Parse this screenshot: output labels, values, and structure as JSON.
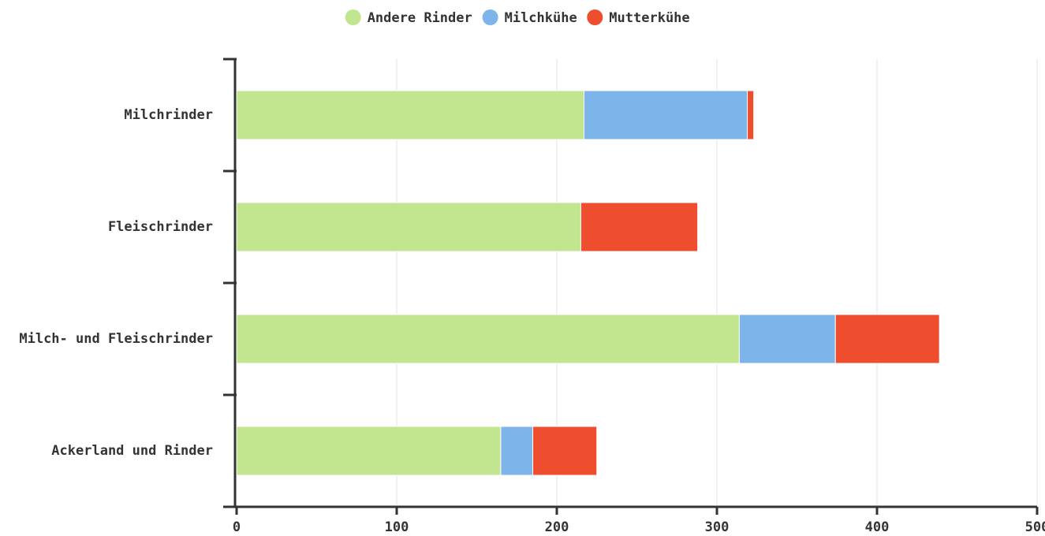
{
  "chart_data": {
    "type": "bar",
    "orientation": "horizontal",
    "stacked": true,
    "categories": [
      "Milchrinder",
      "Fleischrinder",
      "Milch- und Fleischrinder",
      "Ackerland und Rinder"
    ],
    "series": [
      {
        "name": "Andere Rinder",
        "color": "#c2e690",
        "values": [
          217,
          215,
          314,
          165
        ]
      },
      {
        "name": "Milchkühe",
        "color": "#7db4ea",
        "values": [
          102,
          0,
          60,
          20
        ]
      },
      {
        "name": "Mutterkühe",
        "color": "#ef4e2e",
        "values": [
          4,
          73,
          65,
          40
        ]
      }
    ],
    "xlim": [
      0,
      500
    ],
    "xticks": [
      0,
      100,
      200,
      300,
      400,
      500
    ],
    "grid": true,
    "legend": "top"
  }
}
